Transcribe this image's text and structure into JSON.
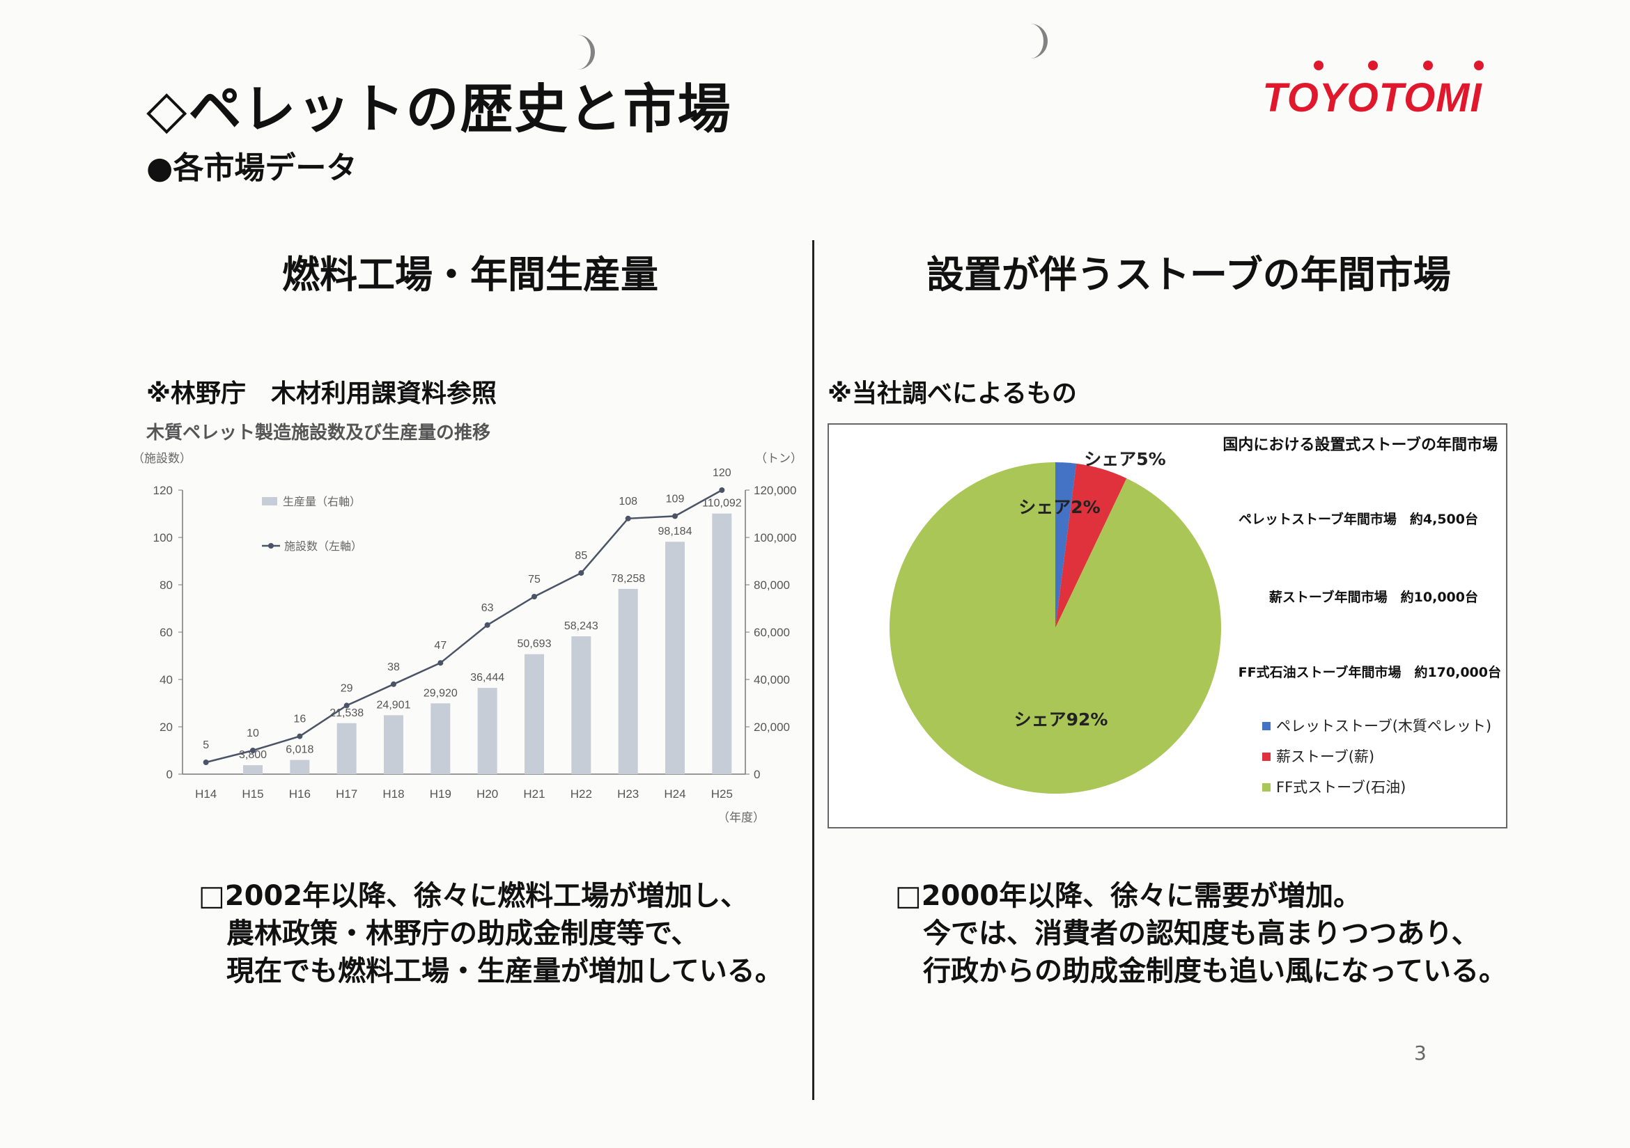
{
  "header": {
    "title": "◇ペレットの歴史と市場",
    "subtitle": "●各市場データ",
    "logo_text": "TOYOTOMI",
    "logo_color": "#e0182d"
  },
  "left": {
    "title": "燃料工場・年間生産量",
    "source": "※林野庁　木材利用課資料参照",
    "note_lines": [
      "□2002年以降、徐々に燃料工場が増加し、",
      "　農林政策・林野庁の助成金制度等で、",
      "　現在でも燃料工場・生産量が増加している。"
    ]
  },
  "right": {
    "title": "設置が伴うストーブの年間市場",
    "source": "※当社調べによるもの",
    "note_lines": [
      "□2000年以降、徐々に需要が増加。",
      "　今では、消費者の認知度も高まりつつあり、",
      "　行政からの助成金制度も追い風になっている。"
    ]
  },
  "page_number": "3",
  "chart_data": [
    {
      "type": "bar",
      "title": "木質ペレット製造施設数及び生産量の推移",
      "categories": [
        "H14",
        "H15",
        "H16",
        "H17",
        "H18",
        "H19",
        "H20",
        "H21",
        "H22",
        "H23",
        "H24",
        "H25"
      ],
      "xlabel": "（年度）",
      "y_left_label": "（施設数）",
      "y_right_label": "（トン）",
      "y_left_ticks": [
        "0",
        "20",
        "40",
        "60",
        "80",
        "100",
        "120"
      ],
      "y_right_ticks": [
        "0",
        "20,000",
        "40,000",
        "60,000",
        "80,000",
        "100,000",
        "120,000"
      ],
      "y_left_range": [
        0,
        120
      ],
      "y_right_range": [
        0,
        120000
      ],
      "series": [
        {
          "name": "生産量（右軸）",
          "type": "bar",
          "axis": "right",
          "color": "#c7cdd6",
          "values": [
            0,
            3800,
            6018,
            21538,
            24901,
            29920,
            36444,
            50693,
            58243,
            78258,
            98184,
            110092
          ],
          "labels": [
            "",
            "3,800",
            "6,018",
            "21,538",
            "24,901",
            "29,920",
            "36,444",
            "50,693",
            "58,243",
            "78,258",
            "98,184",
            "110,092"
          ]
        },
        {
          "name": "施設数（左軸）",
          "type": "line",
          "axis": "left",
          "color": "#4a5466",
          "values": [
            5,
            10,
            16,
            29,
            38,
            47,
            63,
            75,
            85,
            108,
            109,
            120
          ],
          "labels": [
            "5",
            "10",
            "16",
            "29",
            "38",
            "47",
            "63",
            "75",
            "85",
            "108",
            "109",
            "120"
          ]
        }
      ]
    },
    {
      "type": "pie",
      "title": "国内における設置式ストーブの年間市場",
      "slices": [
        {
          "name": "ペレットストーブ(木質ペレット)",
          "value": 2,
          "label": "シェア2%",
          "color": "#4472c4"
        },
        {
          "name": "薪ストーブ(薪)",
          "value": 5,
          "label": "シェア5%",
          "color": "#e0323c"
        },
        {
          "name": "FF式ストーブ(石油)",
          "value": 92,
          "label": "シェア92%",
          "color": "#a9c657"
        }
      ],
      "annotations": [
        "ペレットストーブ年間市場　約4,500台",
        "薪ストーブ年間市場　約10,000台",
        "FF式石油ストーブ年間市場　約170,000台"
      ],
      "legend": "right"
    }
  ]
}
